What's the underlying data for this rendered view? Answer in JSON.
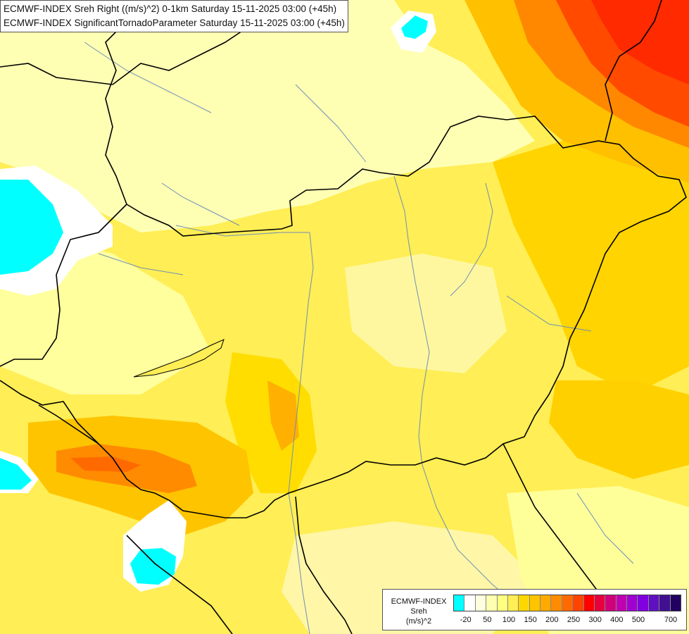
{
  "titles": {
    "line1": "ECMWF-INDEX Sreh Right ((m/s)^2) 0-1km Saturday 15-11-2025 03:00 (+45h)",
    "line2": "ECMWF-INDEX SignificantTornadoParameter Saturday 15-11-2025 03:00 (+45h)"
  },
  "legend": {
    "label_line1": "ECMWF-INDEX",
    "label_line2": "Sreh",
    "label_line3": "(m/s)^2",
    "colors": [
      "#00ffff",
      "#ffffff",
      "#ffffe0",
      "#ffffb0",
      "#ffff80",
      "#ffee55",
      "#ffd700",
      "#ffc400",
      "#ffaa00",
      "#ff8c00",
      "#ff6a00",
      "#ff4400",
      "#ff0000",
      "#e6003c",
      "#d0007a",
      "#c000b0",
      "#a000d0",
      "#8000e0",
      "#6010c0",
      "#401090",
      "#200060"
    ],
    "ticks": [
      "-20",
      "50",
      "100",
      "150",
      "200",
      "250",
      "300",
      "400",
      "500",
      "700"
    ]
  },
  "map": {
    "palette": {
      "pale": "#ffffc8",
      "light_yellow": "#ffff96",
      "yellow": "#ffee40",
      "gold": "#ffd700",
      "orange": "#ffaa00",
      "dark_orange": "#ff7a00",
      "red_orange": "#ff4a00",
      "cyan": "#00ffff",
      "white": "#ffffff",
      "border": "#000000",
      "river": "#6f8fb5"
    }
  }
}
